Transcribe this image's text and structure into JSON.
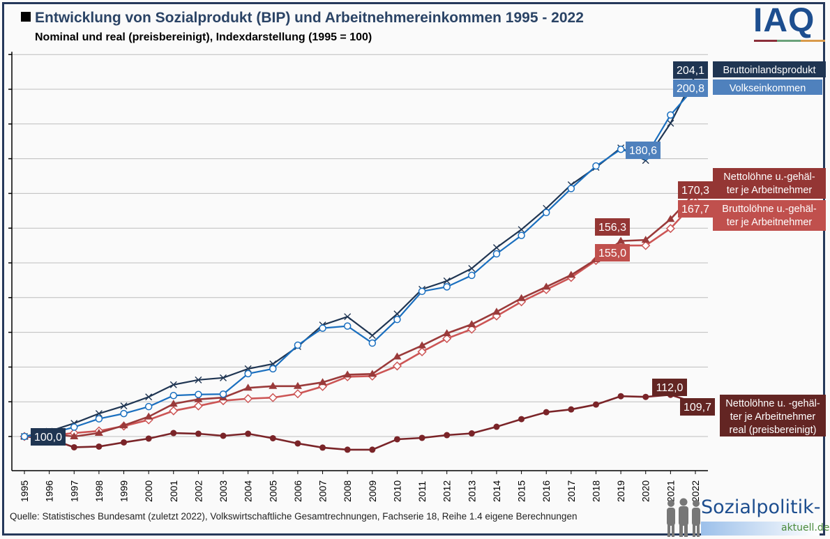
{
  "header": {
    "title": "Entwicklung von Sozialprodukt (BIP) und Arbeitnehmereinkommen 1995 - 2022",
    "subtitle": "Nominal und real (preisbereinigt), Indexdarstellung (1995 = 100)",
    "logo_text": "IAQ",
    "logo_bar_colors": [
      "#8b2f3a",
      "#6aa27a",
      "#d99a4a"
    ]
  },
  "footer": {
    "source": "Quelle: Statistisches Bundesamt (zuletzt 2022), Volkswirtschaftliche Gesamtrechnungen, Fachserie 18, Reihe 1.4  eigene Berechnungen",
    "logo_main": "Sozialpolitik-",
    "logo_sub": "aktuell.de"
  },
  "chart_data": {
    "type": "line",
    "title": "Entwicklung von Sozialprodukt (BIP) und Arbeitnehmereinkommen 1995 - 2022",
    "subtitle": "Nominal und real (preisbereinigt), Indexdarstellung (1995 = 100)",
    "xlabel": "",
    "ylabel": "",
    "ylim": [
      85,
      210
    ],
    "y_gridlines": [
      100,
      110,
      120,
      130,
      140,
      150,
      160,
      170,
      180,
      190,
      200,
      210
    ],
    "y_tick_labels_shown": false,
    "grid": true,
    "x": [
      "1995",
      "1996",
      "1997",
      "1998",
      "1999",
      "2000",
      "2001",
      "2002",
      "2003",
      "2004",
      "2005",
      "2006",
      "2007",
      "2008",
      "2009",
      "2010",
      "2011",
      "2012",
      "2013",
      "2014",
      "2015",
      "2016",
      "2017",
      "2018",
      "2019",
      "2020",
      "2021",
      "2022"
    ],
    "series": [
      {
        "name": "Bruttoinlandsprodukt",
        "color": "#1f3552",
        "marker": "x",
        "values": [
          100,
          101.5,
          103.8,
          106.6,
          108.8,
          111.4,
          114.9,
          116.3,
          116.9,
          119.5,
          120.9,
          125.9,
          132.1,
          134.5,
          129.1,
          135.3,
          142.4,
          144.8,
          148.4,
          154.4,
          159.6,
          165.7,
          172.5,
          177.5,
          183.1,
          179.5,
          190.2,
          204.1
        ]
      },
      {
        "name": "Volkseinkommen",
        "color": "#1a6fbf",
        "marker": "circle-open",
        "values": [
          100,
          100.8,
          102.7,
          105.1,
          106.6,
          108.6,
          111.8,
          112.1,
          112.2,
          118.1,
          119.5,
          126.3,
          131.2,
          131.8,
          126.9,
          133.7,
          141.8,
          143.1,
          146.4,
          152.6,
          157.9,
          164.5,
          171.4,
          177.9,
          182.7,
          180.6,
          192.6,
          200.8
        ]
      },
      {
        "name": "Nettolöhne u.-gehälter je Arbeitnehmer",
        "color": "#9a3a3a",
        "marker": "triangle",
        "values": [
          100,
          100.8,
          100.0,
          101.0,
          103.2,
          105.7,
          109.4,
          110.7,
          111.2,
          114.0,
          114.5,
          114.5,
          115.6,
          117.8,
          118.0,
          123.0,
          126.2,
          129.7,
          132.3,
          135.9,
          139.8,
          143.1,
          146.5,
          151.0,
          156.3,
          156.6,
          162.6,
          170.3
        ]
      },
      {
        "name": "Bruttolöhne u.-gehälter je Arbeitnehmer",
        "color": "#cc5555",
        "marker": "diamond-open",
        "values": [
          100,
          100.3,
          101.0,
          101.6,
          103.0,
          104.8,
          107.4,
          108.8,
          110.3,
          110.9,
          111.2,
          112.3,
          114.4,
          117.2,
          117.4,
          120.3,
          124.4,
          128.2,
          130.9,
          134.7,
          138.8,
          142.3,
          145.8,
          150.7,
          155.0,
          155.0,
          159.9,
          167.7
        ]
      },
      {
        "name": "Nettolöhne u. -gehälter je Arbeitnehmer real (preisbereinigt)",
        "color": "#7a2428",
        "marker": "circle-filled",
        "values": [
          100,
          99.4,
          96.9,
          97.1,
          98.3,
          99.4,
          101.0,
          100.8,
          100.2,
          100.8,
          99.5,
          98.0,
          96.8,
          96.2,
          96.2,
          99.2,
          99.6,
          100.4,
          100.9,
          102.8,
          105.0,
          107.0,
          107.8,
          109.2,
          111.6,
          111.4,
          112.0,
          109.7
        ]
      }
    ],
    "data_labels": [
      {
        "text": "100,0",
        "series": 1,
        "x": "1995",
        "bg": "#1f3552"
      },
      {
        "text": "204,1",
        "series": 0,
        "x": "2022",
        "bg": "#1f3552"
      },
      {
        "text": "200,8",
        "series": 1,
        "x": "2022",
        "bg": "#4f81bd"
      },
      {
        "text": "180,6",
        "series": 1,
        "x": "2020",
        "bg": "#4f81bd"
      },
      {
        "text": "170,3",
        "series": 2,
        "x": "2022",
        "bg": "#943634"
      },
      {
        "text": "167,7",
        "series": 3,
        "x": "2022",
        "bg": "#c0504d"
      },
      {
        "text": "156,3",
        "series": 2,
        "x": "2019",
        "bg": "#943634"
      },
      {
        "text": "155,0",
        "series": 3,
        "x": "2019",
        "bg": "#c0504d"
      },
      {
        "text": "112,0",
        "series": 4,
        "x": "2021",
        "bg": "#632523"
      },
      {
        "text": "109,7",
        "series": 4,
        "x": "2022",
        "bg": "#632523"
      }
    ],
    "legend_labels": [
      {
        "lines": [
          "Bruttoinlandsprodukt"
        ],
        "bg": "#1f3552",
        "placement": "right-top"
      },
      {
        "lines": [
          "Volkseinkommen"
        ],
        "bg": "#4f81bd",
        "placement": "right-top"
      },
      {
        "lines": [
          "Nettolöhne u.-gehäl-",
          "ter je Arbeitnehmer"
        ],
        "bg": "#943634",
        "placement": "right-middle"
      },
      {
        "lines": [
          "Bruttolöhne u.-gehäl-",
          "ter je Arbeitnehmer"
        ],
        "bg": "#c0504d",
        "placement": "right-middle"
      },
      {
        "lines": [
          "Nettolöhne u. -gehäl-",
          "ter je Arbeitnehmer",
          "real (preisbereinigt)"
        ],
        "bg": "#632523",
        "placement": "right-bottom"
      }
    ]
  }
}
